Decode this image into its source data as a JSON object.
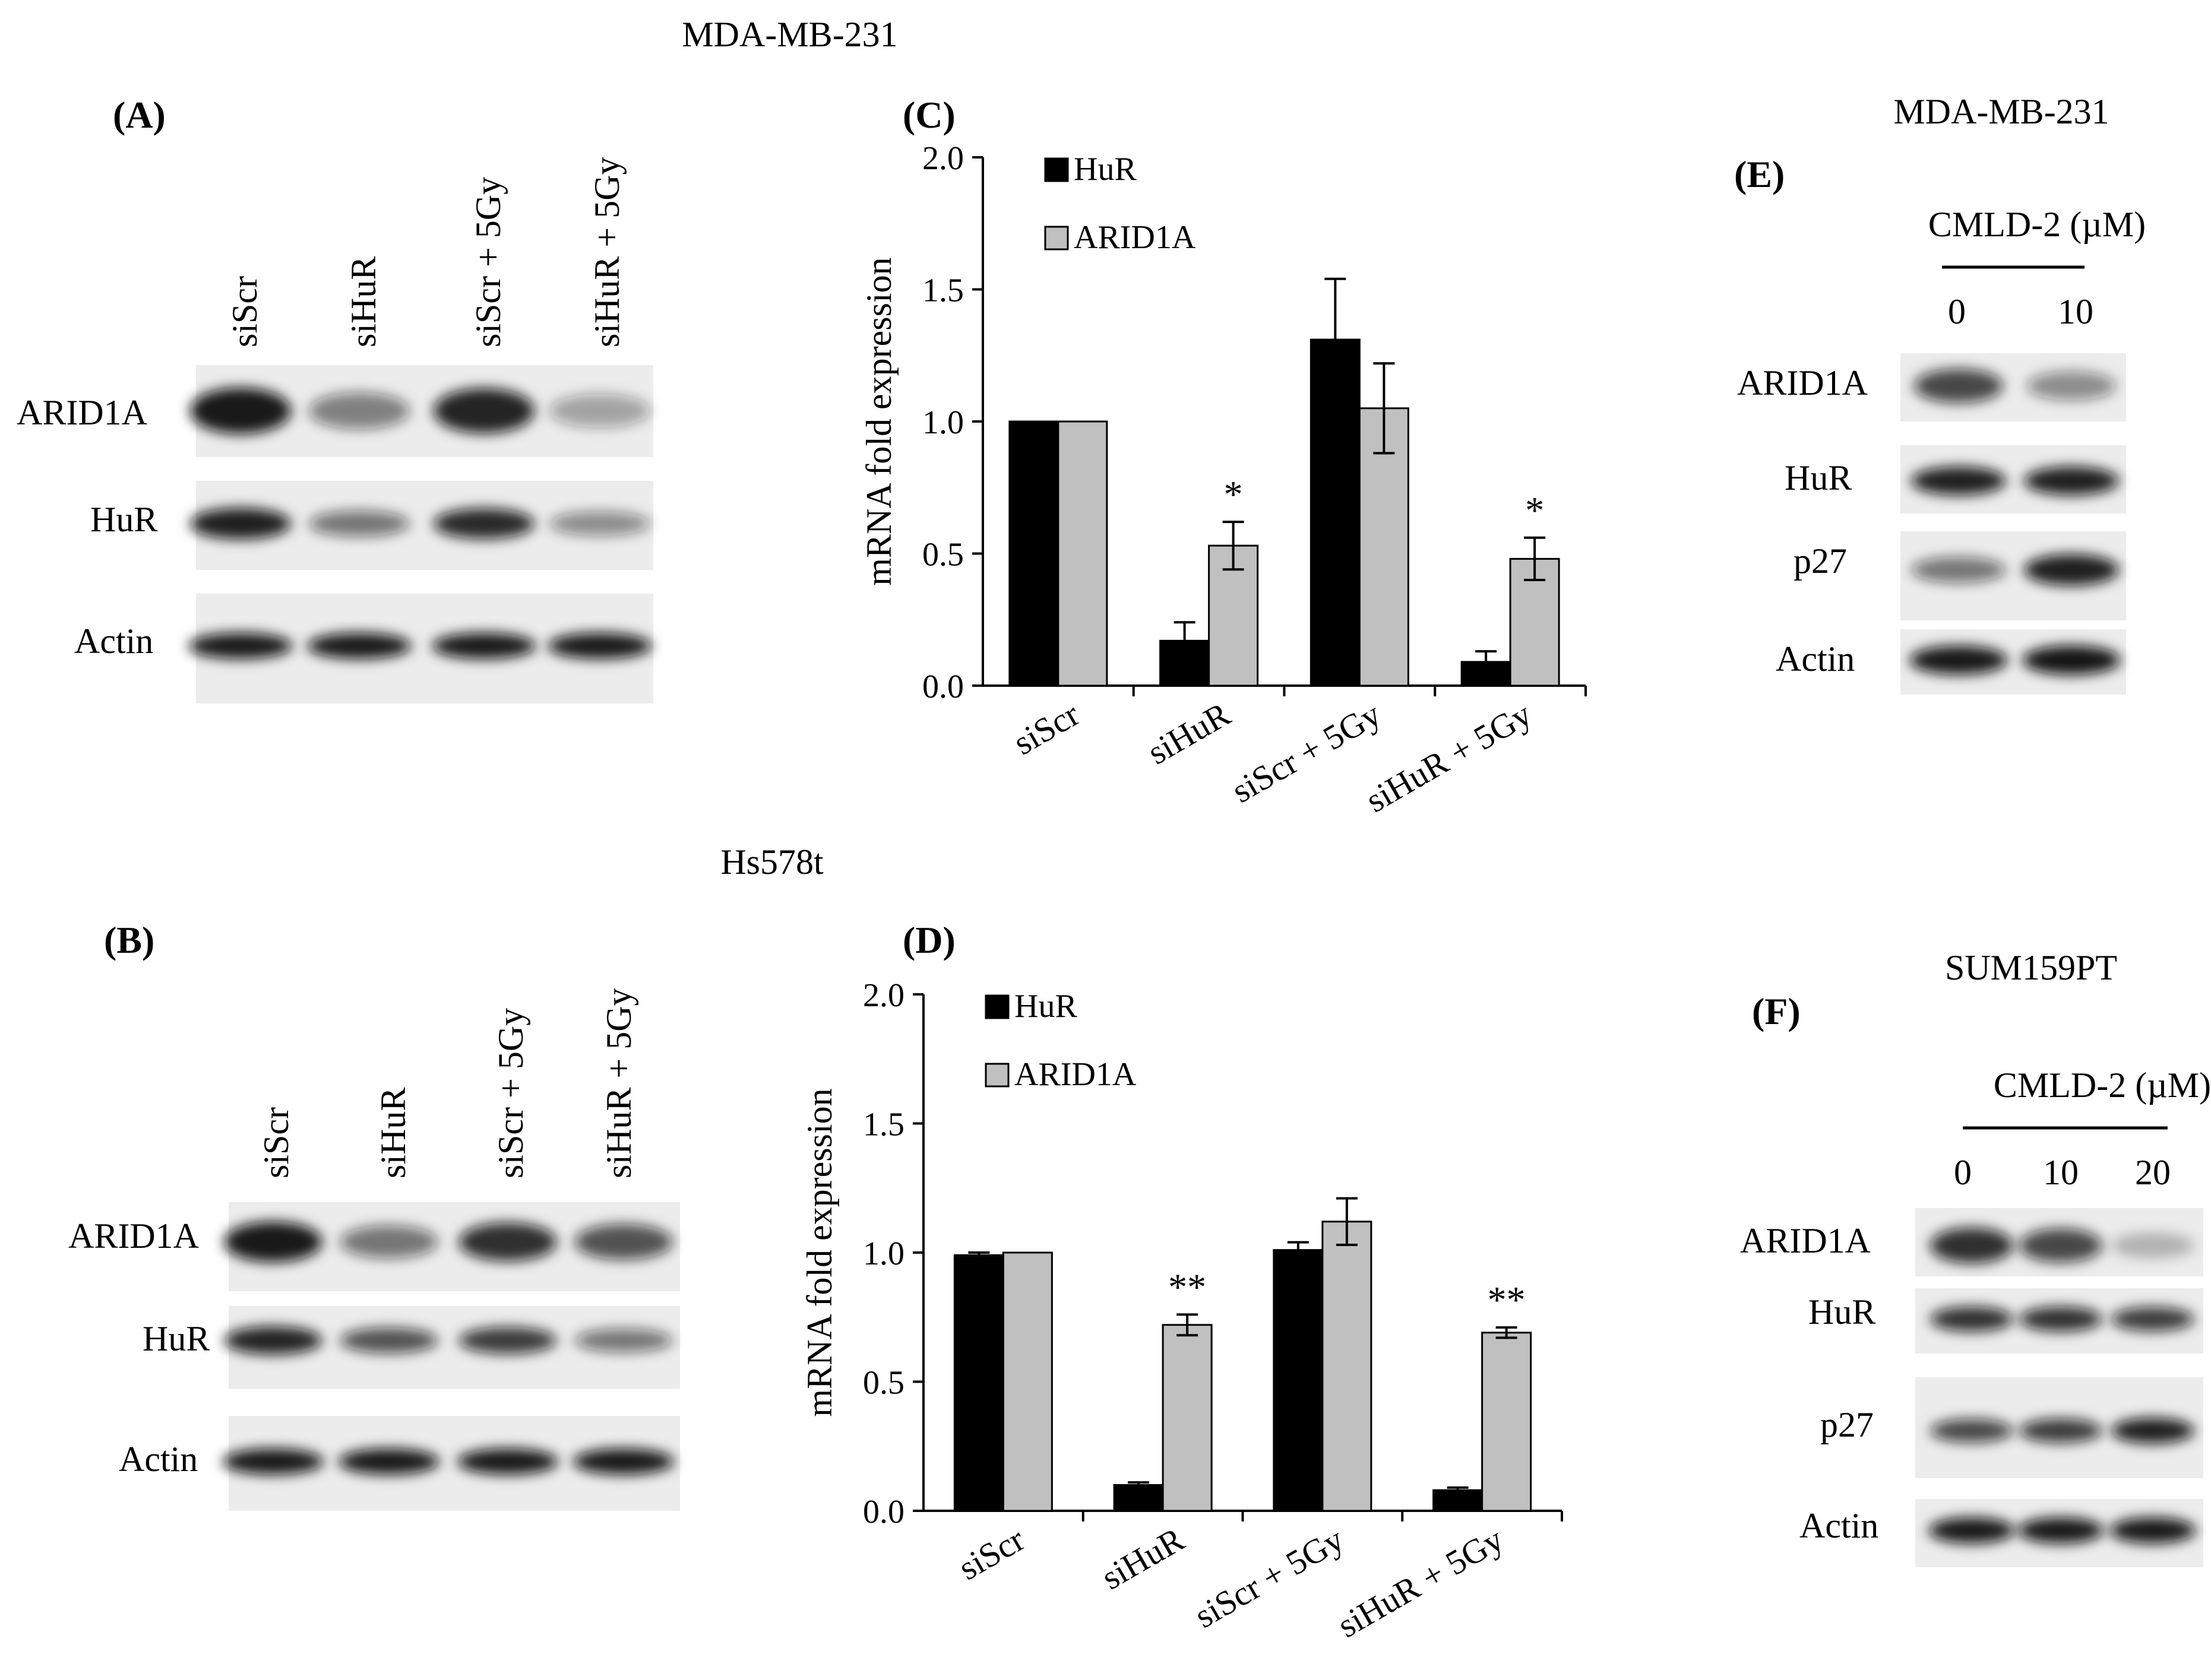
{
  "top_group": {
    "title": "MDA-MB-231"
  },
  "bottom_group": {
    "title": "Hs578t"
  },
  "panel_a": {
    "letter": "(A)",
    "lanes": [
      "siScr",
      "siHuR",
      "siScr + 5Gy",
      "siHuR + 5Gy"
    ],
    "bands": [
      {
        "label": "ARID1A",
        "intensity": [
          0.95,
          0.5,
          0.9,
          0.35
        ]
      },
      {
        "label": "HuR",
        "intensity": [
          0.92,
          0.55,
          0.88,
          0.45
        ]
      },
      {
        "label": "Actin",
        "intensity": [
          0.95,
          0.95,
          0.95,
          0.95
        ]
      }
    ]
  },
  "panel_b": {
    "letter": "(B)",
    "lanes": [
      "siScr",
      "siHuR",
      "siScr + 5Gy",
      "siHuR + 5Gy"
    ],
    "bands": [
      {
        "label": "ARID1A",
        "intensity": [
          0.95,
          0.55,
          0.85,
          0.7
        ]
      },
      {
        "label": "HuR",
        "intensity": [
          0.9,
          0.7,
          0.8,
          0.55
        ]
      },
      {
        "label": "Actin",
        "intensity": [
          0.95,
          0.95,
          0.95,
          0.95
        ]
      }
    ]
  },
  "panel_e": {
    "letter": "(E)",
    "cell_line": "MDA-MB-231",
    "treatment": "CMLD-2 (µM)",
    "doses": [
      "0",
      "10"
    ],
    "bands": [
      {
        "label": "ARID1A",
        "intensity": [
          0.75,
          0.45
        ]
      },
      {
        "label": "HuR",
        "intensity": [
          0.92,
          0.92
        ]
      },
      {
        "label": "p27",
        "intensity": [
          0.55,
          0.92
        ]
      },
      {
        "label": "Actin",
        "intensity": [
          0.95,
          0.97
        ]
      }
    ]
  },
  "panel_f": {
    "letter": "(F)",
    "cell_line": "SUM159PT",
    "treatment": "CMLD-2 (µM)",
    "doses": [
      "0",
      "10",
      "20"
    ],
    "bands": [
      {
        "label": "ARID1A",
        "intensity": [
          0.85,
          0.75,
          0.25
        ]
      },
      {
        "label": "HuR",
        "intensity": [
          0.85,
          0.85,
          0.8
        ]
      },
      {
        "label": "p27",
        "intensity": [
          0.75,
          0.8,
          0.92
        ]
      },
      {
        "label": "Actin",
        "intensity": [
          0.95,
          0.95,
          0.95
        ]
      }
    ]
  },
  "chart_data": [
    {
      "panel": "(C)",
      "type": "bar",
      "categories": [
        "siScr",
        "siHuR",
        "siScr + 5Gy",
        "siHuR + 5Gy"
      ],
      "series": [
        {
          "name": "HuR",
          "color": "#000000",
          "values": [
            1.0,
            0.17,
            1.31,
            0.09
          ],
          "errors": [
            0,
            0.07,
            0.23,
            0.04
          ]
        },
        {
          "name": "ARID1A",
          "color": "#c0c0c0",
          "values": [
            1.0,
            0.53,
            1.05,
            0.48
          ],
          "errors": [
            0,
            0.09,
            0.17,
            0.08
          ]
        }
      ],
      "significance": [
        "",
        "*",
        "",
        "*"
      ],
      "ylabel": "mRNA fold expression",
      "ylim": [
        0,
        2.0
      ],
      "yticks": [
        "0.0",
        "0.5",
        "1.0",
        "1.5",
        "2.0"
      ],
      "legend_position": "top-left"
    },
    {
      "panel": "(D)",
      "type": "bar",
      "categories": [
        "siScr",
        "siHuR",
        "siScr + 5Gy",
        "siHuR + 5Gy"
      ],
      "series": [
        {
          "name": "HuR",
          "color": "#000000",
          "values": [
            0.99,
            0.1,
            1.01,
            0.08
          ],
          "errors": [
            0.01,
            0.01,
            0.03,
            0.01
          ]
        },
        {
          "name": "ARID1A",
          "color": "#c0c0c0",
          "values": [
            1.0,
            0.72,
            1.12,
            0.69
          ],
          "errors": [
            0,
            0.04,
            0.09,
            0.02
          ]
        }
      ],
      "significance": [
        "",
        "**",
        "",
        "**"
      ],
      "ylabel": "mRNA fold expression",
      "ylim": [
        0,
        2.0
      ],
      "yticks": [
        "0.0",
        "0.5",
        "1.0",
        "1.5",
        "2.0"
      ],
      "legend_position": "top-left"
    }
  ]
}
